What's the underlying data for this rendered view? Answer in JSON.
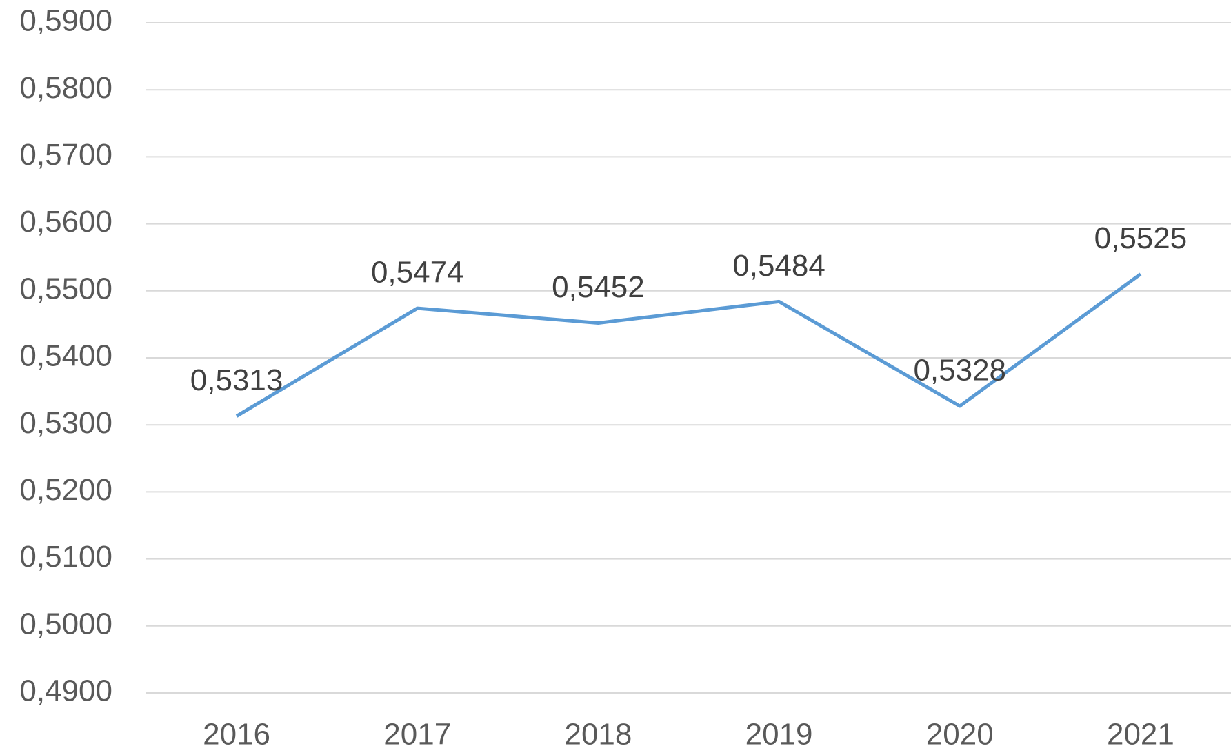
{
  "chart_data": {
    "type": "line",
    "categories": [
      "2016",
      "2017",
      "2018",
      "2019",
      "2020",
      "2021"
    ],
    "series": [
      {
        "color": "#5b9bd5",
        "values": [
          0.5313,
          0.5474,
          0.5452,
          0.5484,
          0.5328,
          0.5525
        ],
        "value_labels": [
          "0,5313",
          "0,5474",
          "0,5452",
          "0,5484",
          "0,5328",
          "0,5525"
        ]
      }
    ],
    "ylim": [
      0.49,
      0.59
    ],
    "yticks": [
      {
        "value": 0.49,
        "label": "0,4900"
      },
      {
        "value": 0.5,
        "label": "0,5000"
      },
      {
        "value": 0.51,
        "label": "0,5100"
      },
      {
        "value": 0.52,
        "label": "0,5200"
      },
      {
        "value": 0.53,
        "label": "0,5300"
      },
      {
        "value": 0.54,
        "label": "0,5400"
      },
      {
        "value": 0.55,
        "label": "0,5500"
      },
      {
        "value": 0.56,
        "label": "0,5600"
      },
      {
        "value": 0.57,
        "label": "0,5700"
      },
      {
        "value": 0.58,
        "label": "0,5800"
      },
      {
        "value": 0.59,
        "label": "0,5900"
      }
    ],
    "grid": true
  }
}
